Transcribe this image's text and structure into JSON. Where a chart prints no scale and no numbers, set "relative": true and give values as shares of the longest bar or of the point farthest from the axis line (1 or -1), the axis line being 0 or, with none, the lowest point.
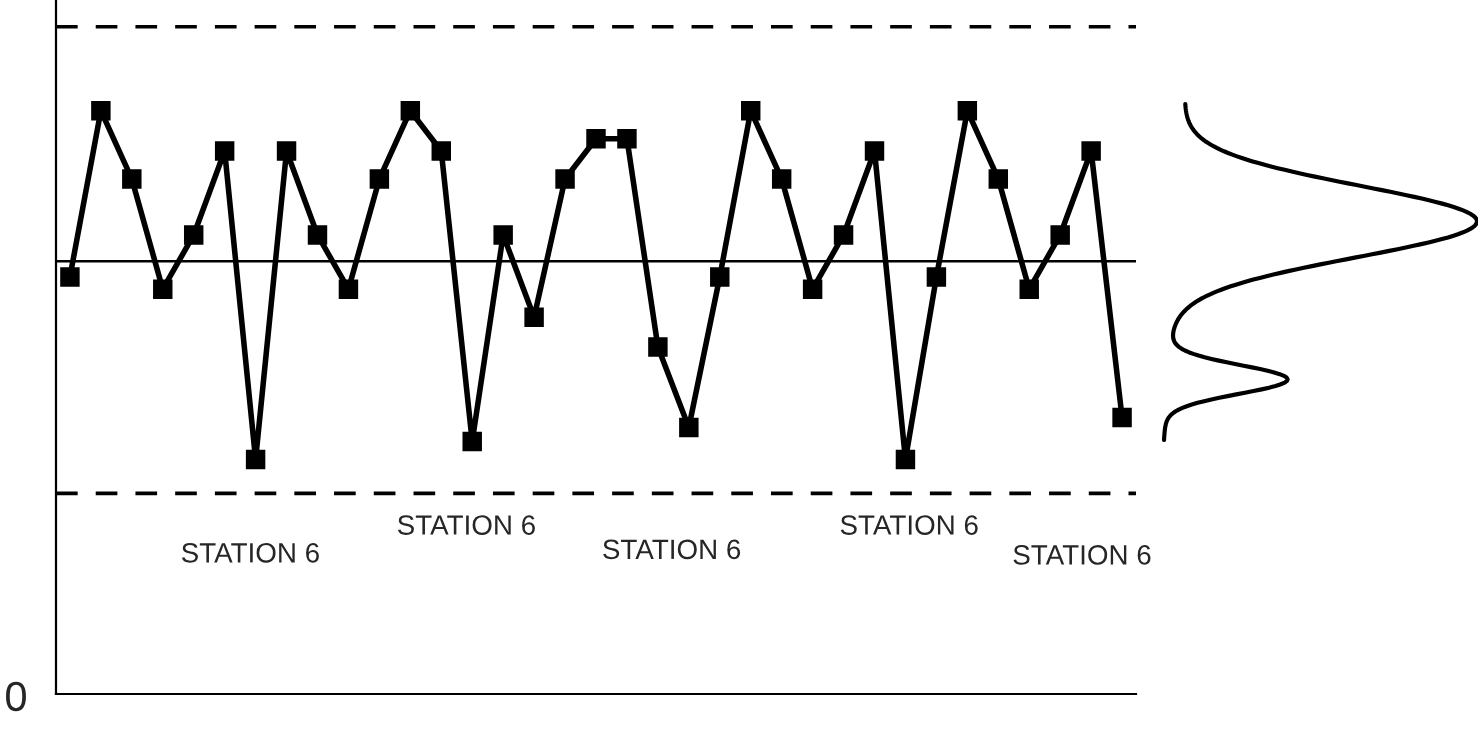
{
  "chart_data": {
    "type": "line",
    "relative": true,
    "marker": "square",
    "line_style": "solid",
    "grid": false,
    "legend": false,
    "categories": [
      null,
      null,
      null,
      null,
      null,
      null,
      null,
      null,
      null,
      null,
      null,
      null,
      null,
      null,
      null,
      null,
      null,
      null,
      null,
      null,
      null,
      null,
      null,
      null,
      null,
      null,
      null,
      null,
      null,
      null,
      null,
      null,
      null,
      null,
      null
    ],
    "series": [
      {
        "color": "#000000",
        "values": [
          0.715,
          1,
          0.883,
          0.694,
          0.787,
          0.931,
          0.402,
          0.931,
          0.787,
          0.694,
          0.883,
          1,
          0.931,
          0.433,
          0.787,
          0.646,
          0.883,
          0.952,
          0.952,
          0.595,
          0.457,
          0.715,
          1,
          0.883,
          0.694,
          0.787,
          0.931,
          0.402,
          0.715,
          1,
          0.883,
          0.694,
          0.787,
          0.931,
          0.474
        ]
      }
    ],
    "ref_lines": [
      {
        "axis": "y",
        "value": 1.144,
        "line_style": "dashed",
        "color": "#000000"
      },
      {
        "axis": "y",
        "value": 0.742,
        "line_style": "solid",
        "color": "#000000"
      },
      {
        "axis": "y",
        "value": 0.344,
        "line_style": "dashed",
        "color": "#000000"
      }
    ],
    "annotations": [
      "STATION 6",
      "STATION 6",
      "STATION 6",
      "STATION 6",
      "STATION 6",
      "0"
    ]
  }
}
